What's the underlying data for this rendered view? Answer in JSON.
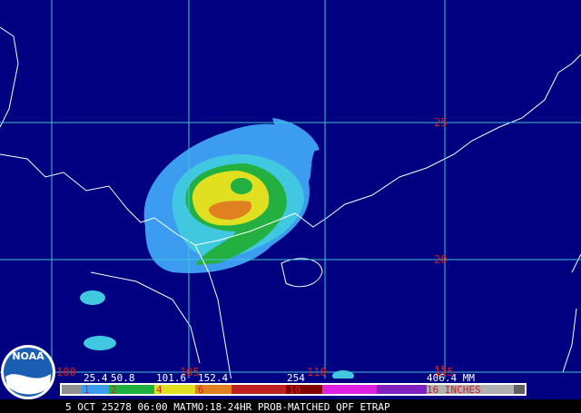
{
  "map": {
    "lat_labels": [
      "25",
      "20",
      "15"
    ],
    "lon_labels": [
      "100",
      "105",
      "110",
      "115"
    ]
  },
  "legend": {
    "mm_labels": [
      "25.4",
      "50.8",
      "101.6",
      "152.4",
      "254",
      "406.4 MM"
    ],
    "inch_labels": [
      "1",
      "2",
      "4",
      "6",
      "10",
      "16 INCHES"
    ]
  },
  "logo": {
    "text": "NOAA"
  },
  "footer": {
    "caption": "5 OCT 25278 06:00 MATMO:18-24HR PROB-MATCHED QPF ETRAP"
  }
}
